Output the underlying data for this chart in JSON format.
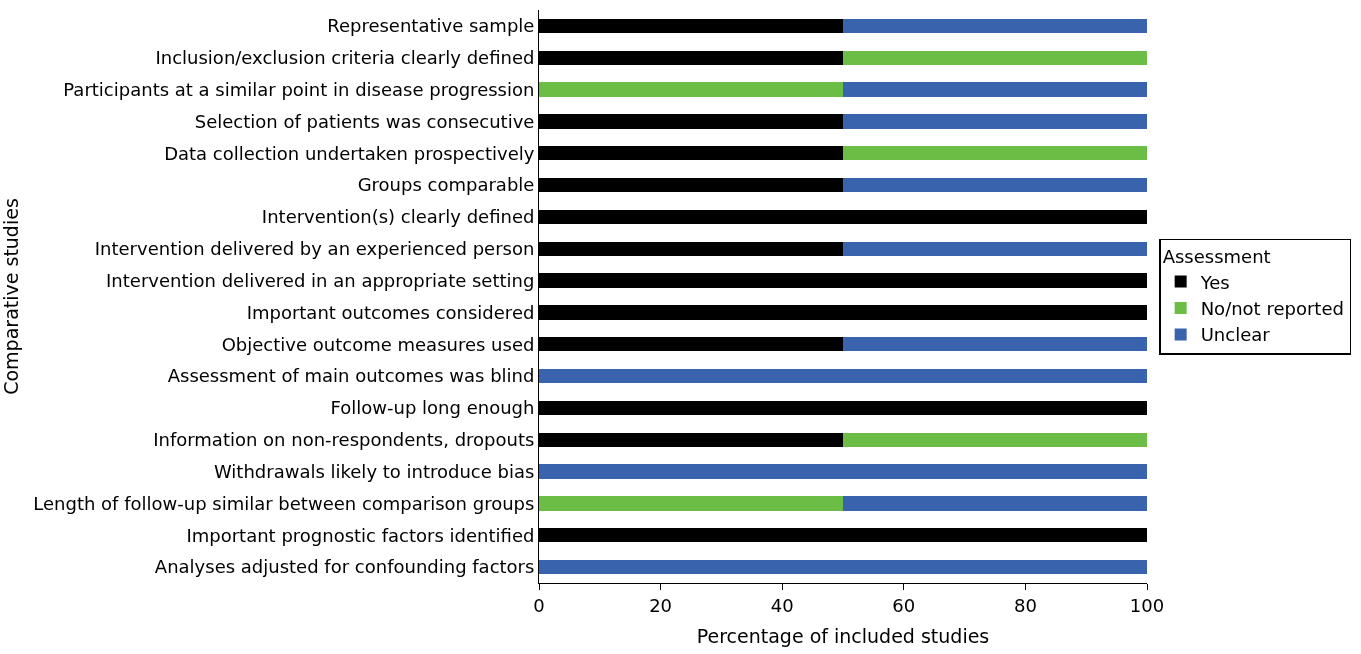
{
  "chart_data": {
    "type": "bar",
    "orientation": "horizontal",
    "stacked": true,
    "xlabel": "Percentage of included studies",
    "ylabel": "Comparative studies",
    "legend_title": "Assessment",
    "categories": [
      "Representative sample",
      "Inclusion/exclusion criteria clearly defined",
      "Participants at a similar point in disease progression",
      "Selection of patients was consecutive",
      "Data collection undertaken prospectively",
      "Groups comparable",
      "Intervention(s) clearly defined",
      "Intervention delivered by an experienced person",
      "Intervention delivered in an appropriate setting",
      "Important outcomes considered",
      "Objective outcome measures used",
      "Assessment of main outcomes was blind",
      "Follow-up long enough",
      "Information on non-respondents, dropouts",
      "Withdrawals likely to introduce bias",
      "Length of follow-up similar between comparison groups",
      "Important prognostic factors identified",
      "Analyses adjusted for confounding factors"
    ],
    "series": [
      {
        "name": "Yes",
        "color": "#000000",
        "values": [
          50,
          50,
          0,
          50,
          50,
          50,
          100,
          50,
          100,
          100,
          50,
          0,
          100,
          50,
          0,
          0,
          100,
          0
        ]
      },
      {
        "name": "No/not reported",
        "color": "#6cbd45",
        "values": [
          0,
          50,
          50,
          0,
          50,
          0,
          0,
          0,
          0,
          0,
          0,
          0,
          0,
          50,
          0,
          50,
          0,
          0
        ]
      },
      {
        "name": "Unclear",
        "color": "#3a63ad",
        "values": [
          50,
          0,
          50,
          50,
          0,
          50,
          0,
          50,
          0,
          0,
          50,
          100,
          0,
          0,
          100,
          50,
          0,
          100
        ]
      }
    ],
    "xlim": [
      0,
      100
    ],
    "xticks": [
      0,
      20,
      40,
      60,
      80,
      100
    ],
    "legend": "right"
  }
}
